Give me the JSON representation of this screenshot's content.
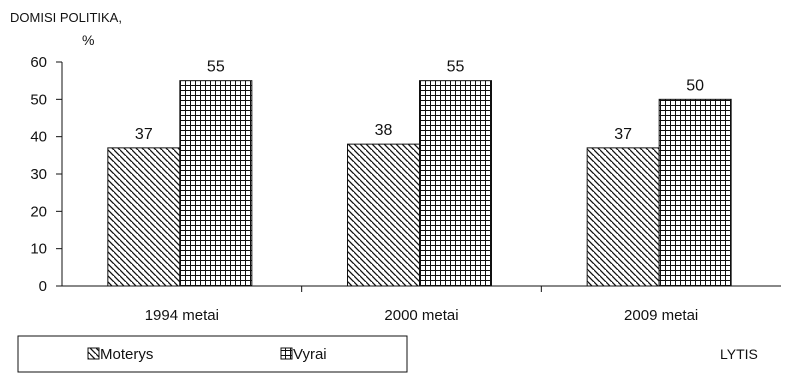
{
  "chart_data": {
    "type": "bar",
    "ylabel_line1": "DOMISI POLITIKA,",
    "ylabel_line2": "%",
    "xlabel": "LYTIS",
    "categories": [
      "1994 metai",
      "2000 metai",
      "2009 metai"
    ],
    "series": [
      {
        "name": "Moterys",
        "values": [
          37,
          38,
          37
        ],
        "pattern": "diagonal-hatch"
      },
      {
        "name": "Vyrai",
        "values": [
          55,
          55,
          50
        ],
        "pattern": "grid-hatch"
      }
    ],
    "ylim": [
      0,
      60
    ],
    "yticks": [
      0,
      10,
      20,
      30,
      40,
      50,
      60
    ],
    "grid": false,
    "legend_placement": "bottom-left",
    "colors": {
      "ink": "#111111",
      "background": "#ffffff"
    }
  }
}
